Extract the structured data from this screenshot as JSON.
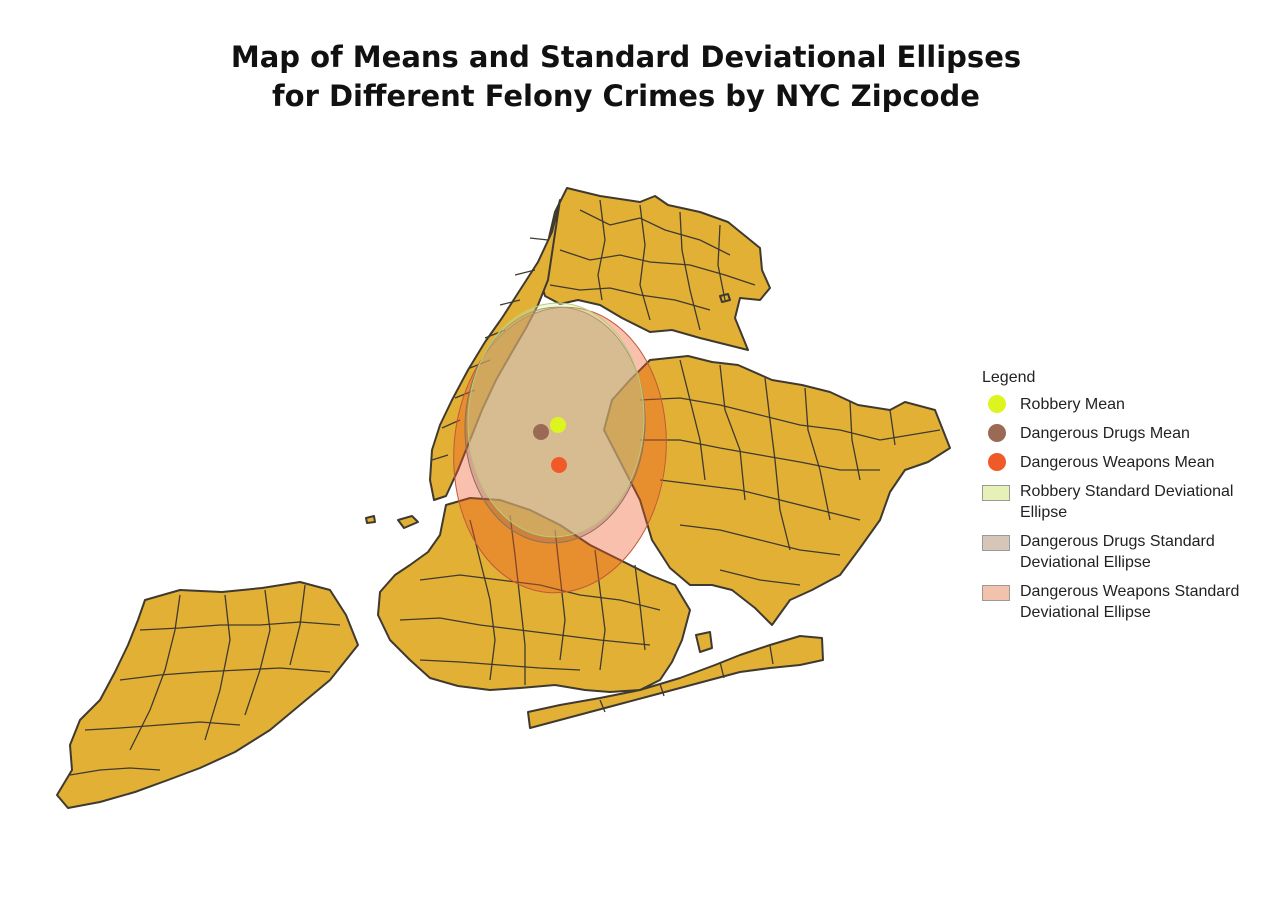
{
  "title": {
    "line1": "Map of Means and Standard Deviational Ellipses",
    "line2": "for Different Felony Crimes by NYC Zipcode"
  },
  "colors": {
    "land": "#e2b035",
    "border": "#3f3a30",
    "robbery_mean": "#dcf51e",
    "drugs_mean": "#9a6a55",
    "weapons_mean": "#f05a28",
    "robbery_ellipse": "#e6f1b8",
    "drugs_ellipse": "#d6c6b8",
    "weapons_ellipse": "#f3c2ad"
  },
  "legend": {
    "title": "Legend",
    "items": [
      {
        "label": "Robbery Mean",
        "symbol": "dot",
        "color": "#dcf51e"
      },
      {
        "label": "Dangerous Drugs Mean",
        "symbol": "dot",
        "color": "#9a6a55"
      },
      {
        "label": "Dangerous Weapons Mean",
        "symbol": "dot",
        "color": "#f05a28"
      },
      {
        "label": "Robbery Standard Deviational Ellipse",
        "symbol": "box",
        "color": "#e6f1b8"
      },
      {
        "label": "Dangerous Drugs Standard Deviational Ellipse",
        "symbol": "box",
        "color": "#d6c6b8"
      },
      {
        "label": "Dangerous Weapons Standard Deviational Ellipse",
        "symbol": "box",
        "color": "#f3c2ad"
      }
    ]
  }
}
